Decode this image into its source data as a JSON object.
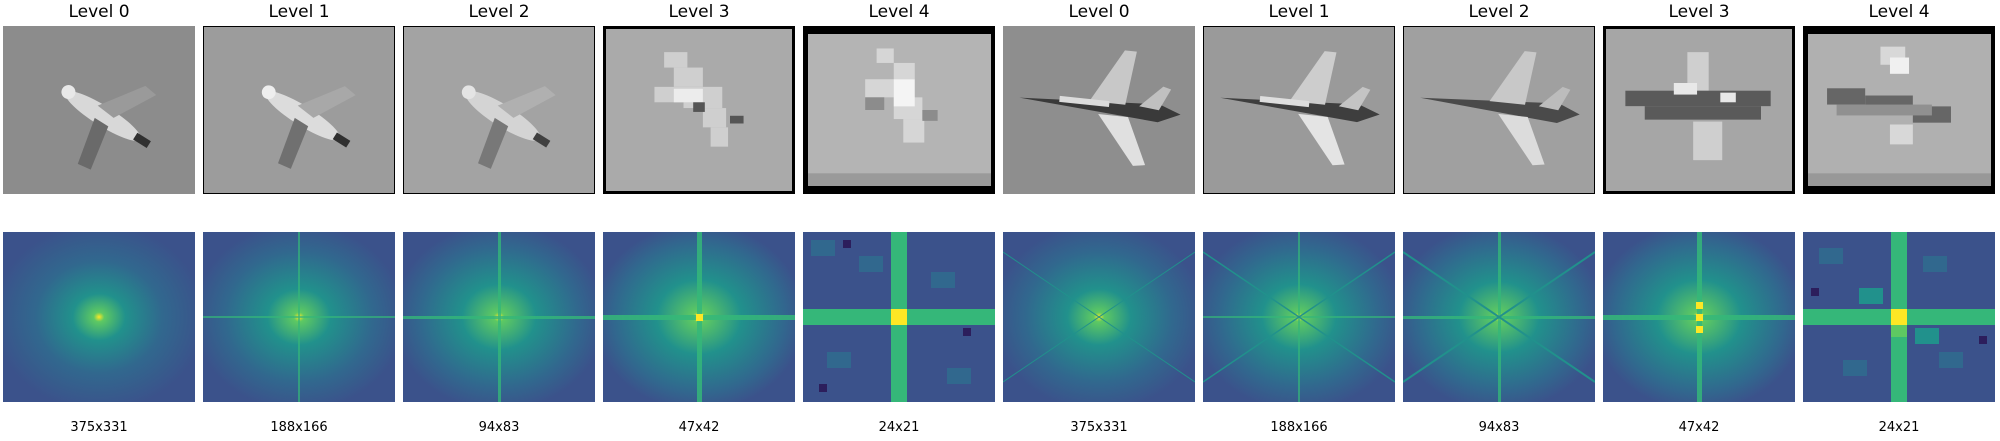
{
  "groups": [
    {
      "subject": "bird",
      "levels": [
        {
          "title": "Level 0",
          "size": "375x331"
        },
        {
          "title": "Level 1",
          "size": "188x166"
        },
        {
          "title": "Level 2",
          "size": "94x83"
        },
        {
          "title": "Level 3",
          "size": "47x42"
        },
        {
          "title": "Level 4",
          "size": "24x21"
        }
      ]
    },
    {
      "subject": "fighter-jet",
      "levels": [
        {
          "title": "Level 0",
          "size": "375x331"
        },
        {
          "title": "Level 1",
          "size": "188x166"
        },
        {
          "title": "Level 2",
          "size": "94x83"
        },
        {
          "title": "Level 3",
          "size": "47x42"
        },
        {
          "title": "Level 4",
          "size": "24x21"
        }
      ]
    }
  ],
  "colors": {
    "fft_background": "#3b528b",
    "fft_axis": "#35b779",
    "fft_center": "#fde725"
  }
}
